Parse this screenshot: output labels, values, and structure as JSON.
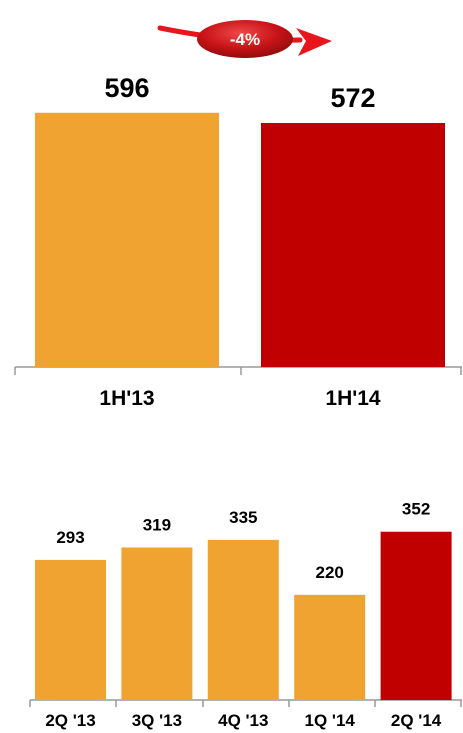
{
  "chart_data": [
    {
      "type": "bar",
      "categories": [
        "1H'13",
        "1H'14"
      ],
      "values": [
        596,
        572
      ],
      "data_labels": [
        "596",
        "572"
      ],
      "ylim": [
        0,
        640
      ],
      "grid": false,
      "annotation": "-4%",
      "colors": [
        "#F0A330",
        "#C00000"
      ]
    },
    {
      "type": "bar",
      "categories": [
        "2Q '13",
        "3Q '13",
        "4Q '13",
        "1Q '14",
        "2Q '14"
      ],
      "values": [
        293,
        319,
        335,
        220,
        352
      ],
      "data_labels": [
        "293",
        "319",
        "335",
        "220",
        "352"
      ],
      "ylim": [
        0,
        410
      ],
      "grid": false,
      "colors": [
        "#F0A330",
        "#F0A330",
        "#F0A330",
        "#F0A330",
        "#C00000"
      ]
    }
  ],
  "colors": {
    "accent_orange": "#F0A330",
    "accent_red": "#C00000",
    "axis": "#999999",
    "arrow": "#E8161C"
  }
}
